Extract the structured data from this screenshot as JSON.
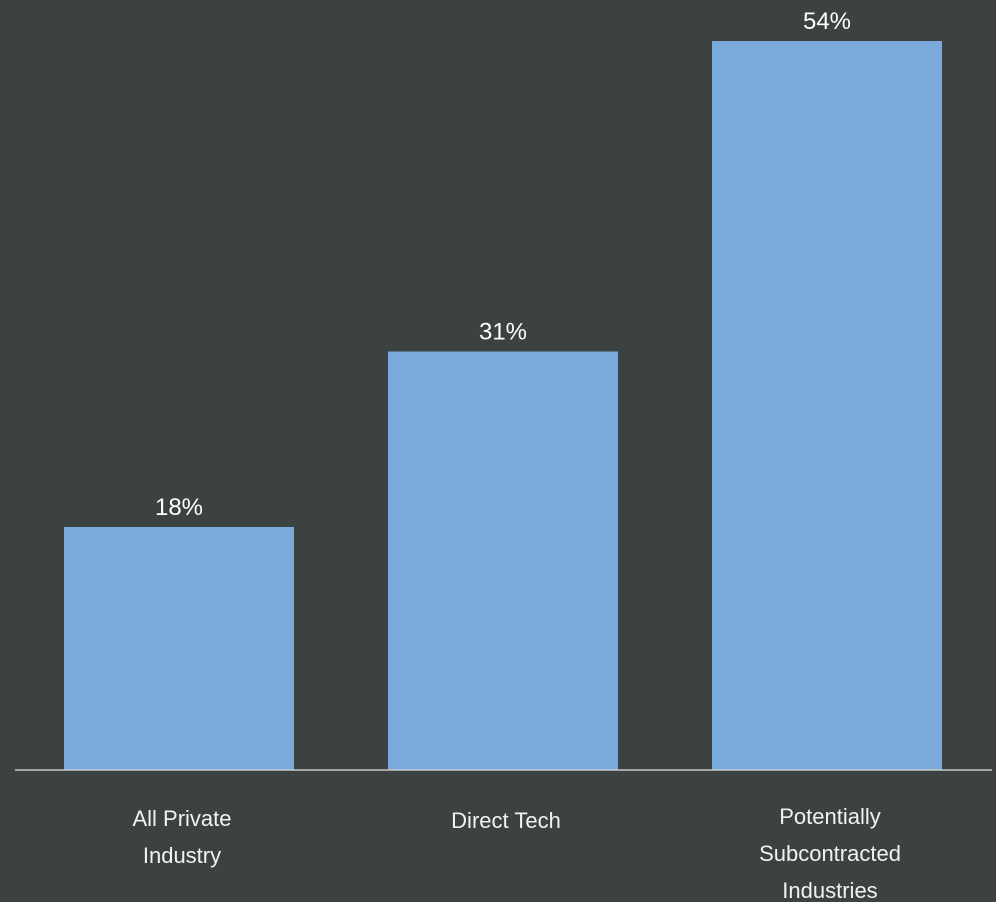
{
  "chart_data": {
    "type": "bar",
    "categories": [
      [
        "All Private",
        "Industry"
      ],
      [
        "Direct Tech"
      ],
      [
        "Potentially",
        "Subcontracted",
        "Industries"
      ]
    ],
    "values": [
      18,
      31,
      54
    ],
    "data_labels": [
      "18%",
      "31%",
      "54%"
    ],
    "title": "",
    "xlabel": "",
    "ylabel": "",
    "ylim": [
      0,
      54
    ],
    "grid": false,
    "legend": "none"
  },
  "colors": {
    "background": "#3c4142",
    "bar": "#7aaadb",
    "axis": "#c8cacb",
    "text": "#ffffff"
  }
}
